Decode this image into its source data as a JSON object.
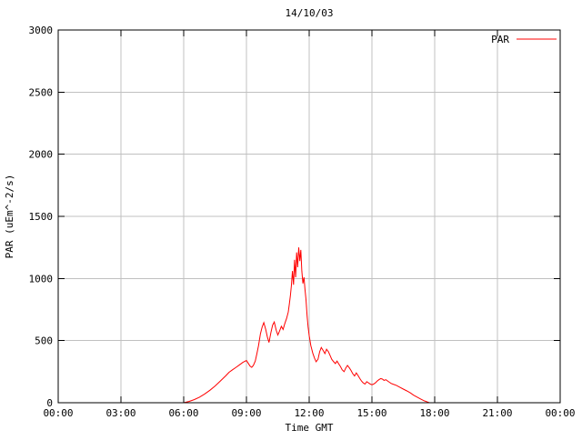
{
  "chart_data": {
    "type": "line",
    "title": "14/10/03",
    "xlabel": "Time GMT",
    "ylabel": "PAR (uEm^-2/s)",
    "xlim": [
      0,
      24
    ],
    "ylim": [
      0,
      3000
    ],
    "grid": true,
    "colors": {
      "background": "#ffffff",
      "border": "#000000",
      "grid": "#c0c0c0",
      "text": "#000000",
      "line": "#ff0000"
    },
    "x_ticks": [
      {
        "v": 0,
        "label": "00:00"
      },
      {
        "v": 3,
        "label": "03:00"
      },
      {
        "v": 6,
        "label": "06:00"
      },
      {
        "v": 9,
        "label": "09:00"
      },
      {
        "v": 12,
        "label": "12:00"
      },
      {
        "v": 15,
        "label": "15:00"
      },
      {
        "v": 18,
        "label": "18:00"
      },
      {
        "v": 21,
        "label": "21:00"
      },
      {
        "v": 24,
        "label": "00:00"
      }
    ],
    "y_ticks": [
      {
        "v": 0,
        "label": "0"
      },
      {
        "v": 500,
        "label": "500"
      },
      {
        "v": 1000,
        "label": "1000"
      },
      {
        "v": 1500,
        "label": "1500"
      },
      {
        "v": 2000,
        "label": "2000"
      },
      {
        "v": 2500,
        "label": "2500"
      },
      {
        "v": 3000,
        "label": "3000"
      }
    ],
    "legend": {
      "position": "top-right",
      "entries": [
        {
          "label": "PAR",
          "color": "#ff0000"
        }
      ]
    },
    "series": [
      {
        "name": "PAR",
        "color": "#ff0000",
        "x": [
          0,
          6.0,
          6.25,
          6.5,
          6.75,
          7.0,
          7.25,
          7.5,
          7.75,
          8.0,
          8.17,
          8.33,
          8.5,
          8.67,
          8.83,
          9.0,
          9.08,
          9.17,
          9.25,
          9.33,
          9.42,
          9.5,
          9.58,
          9.67,
          9.75,
          9.83,
          9.92,
          10.0,
          10.08,
          10.17,
          10.25,
          10.33,
          10.42,
          10.5,
          10.58,
          10.67,
          10.75,
          10.83,
          10.92,
          11.0,
          11.05,
          11.1,
          11.15,
          11.2,
          11.25,
          11.3,
          11.35,
          11.4,
          11.45,
          11.5,
          11.55,
          11.6,
          11.65,
          11.7,
          11.75,
          11.8,
          11.85,
          11.9,
          11.95,
          12.0,
          12.08,
          12.17,
          12.25,
          12.33,
          12.42,
          12.5,
          12.58,
          12.67,
          12.75,
          12.83,
          12.92,
          13.0,
          13.08,
          13.17,
          13.25,
          13.33,
          13.42,
          13.5,
          13.58,
          13.67,
          13.75,
          13.83,
          13.92,
          14.0,
          14.08,
          14.17,
          14.25,
          14.33,
          14.42,
          14.5,
          14.58,
          14.67,
          14.75,
          14.83,
          14.92,
          15.0,
          15.08,
          15.17,
          15.25,
          15.33,
          15.42,
          15.5,
          15.58,
          15.67,
          15.75,
          15.83,
          15.92,
          16.0,
          16.17,
          16.33,
          16.5,
          16.67,
          16.83,
          17.0,
          17.17,
          17.33,
          17.5,
          17.67,
          17.75,
          18.0,
          24.0
        ],
        "y": [
          0,
          0,
          10,
          25,
          45,
          70,
          100,
          135,
          175,
          215,
          245,
          265,
          285,
          305,
          325,
          340,
          320,
          295,
          285,
          300,
          335,
          395,
          460,
          555,
          610,
          645,
          590,
          530,
          485,
          565,
          625,
          650,
          585,
          545,
          575,
          615,
          590,
          635,
          680,
          730,
          790,
          860,
          940,
          1060,
          950,
          1150,
          1010,
          1210,
          1090,
          1250,
          1140,
          1230,
          1060,
          960,
          1010,
          910,
          830,
          700,
          610,
          540,
          460,
          400,
          360,
          330,
          350,
          410,
          445,
          420,
          395,
          430,
          410,
          380,
          350,
          330,
          315,
          335,
          310,
          290,
          265,
          250,
          280,
          300,
          280,
          260,
          235,
          215,
          240,
          220,
          195,
          175,
          160,
          150,
          170,
          160,
          150,
          145,
          150,
          160,
          175,
          185,
          195,
          190,
          180,
          185,
          175,
          165,
          155,
          150,
          140,
          125,
          110,
          95,
          80,
          60,
          45,
          30,
          15,
          5,
          0,
          0,
          0
        ]
      }
    ]
  }
}
